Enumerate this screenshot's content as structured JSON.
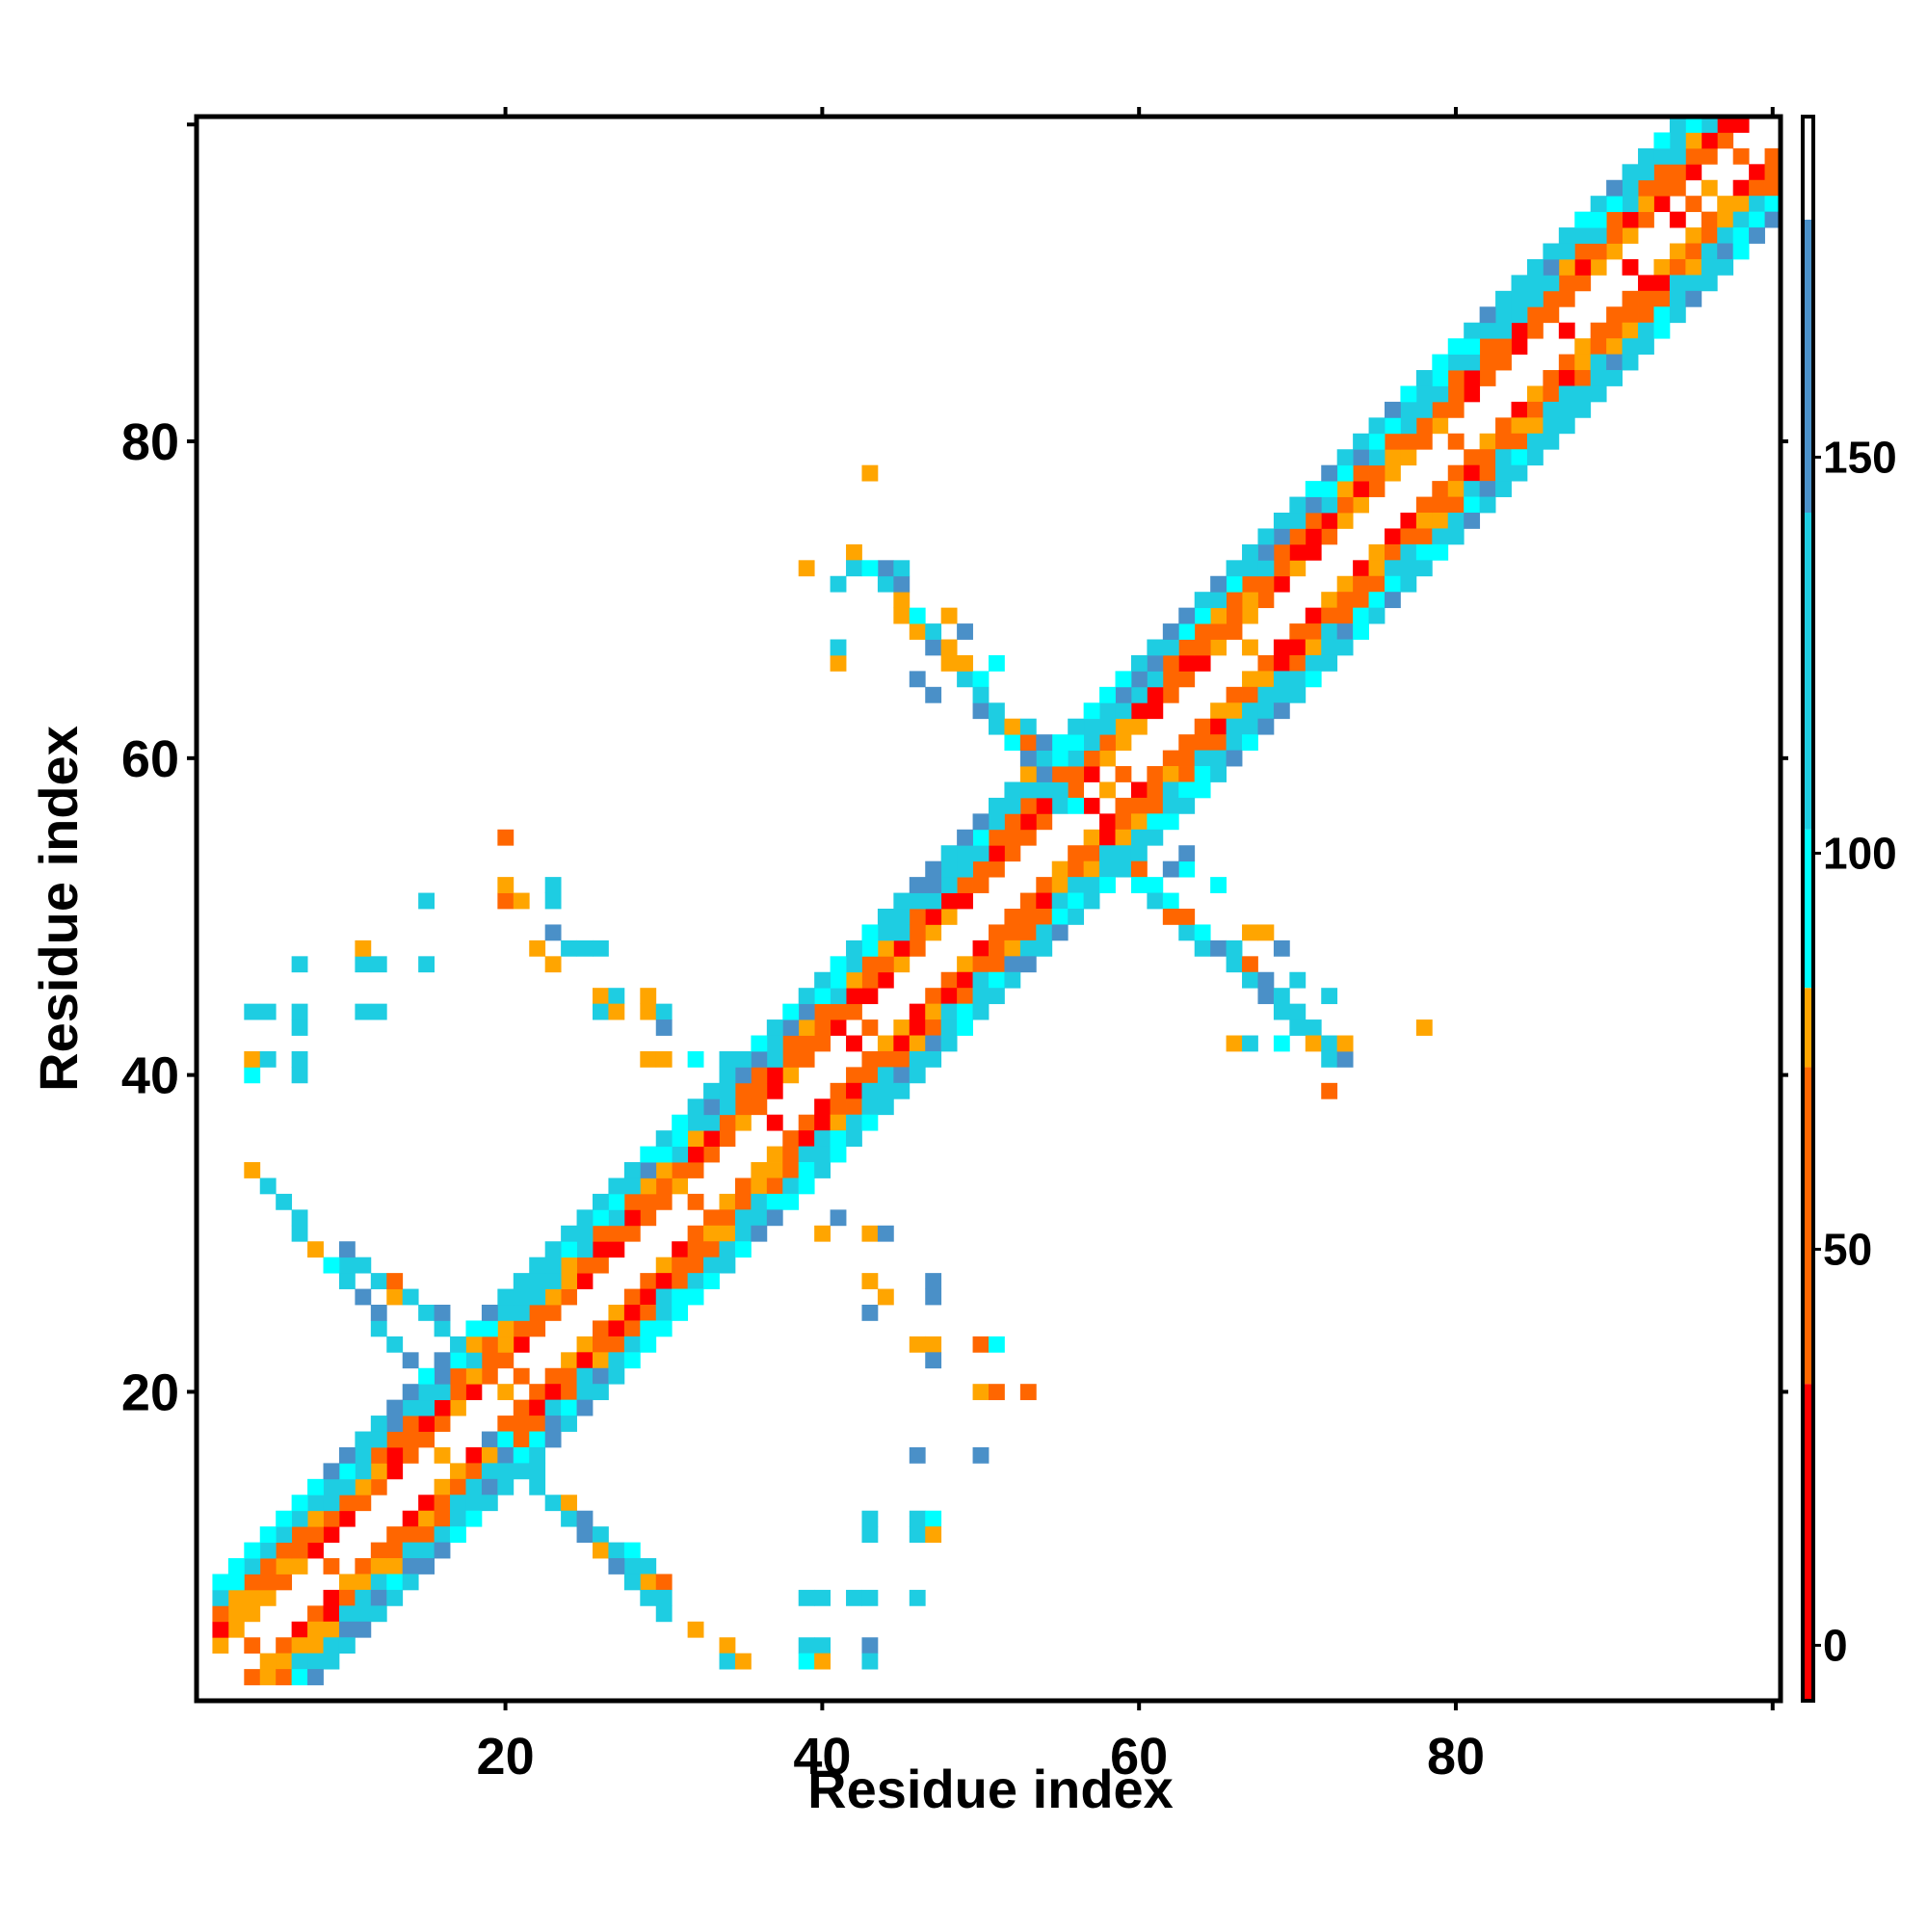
{
  "chart_data": {
    "type": "heatmap",
    "title": "",
    "xlabel": "Residue index",
    "ylabel": "Residue index",
    "xlim": [
      1,
      100
    ],
    "ylim": [
      1,
      100
    ],
    "x_ticks": [
      20,
      40,
      60,
      80
    ],
    "y_ticks": [
      20,
      40,
      60,
      80
    ],
    "grid": false,
    "colorbar": {
      "ticks": [
        0,
        50,
        100,
        150
      ],
      "range": [
        -7,
        193
      ],
      "bands": [
        {
          "from": -7,
          "to": 33,
          "color": "#ff0000"
        },
        {
          "from": 33,
          "to": 73,
          "color": "#ff6600"
        },
        {
          "from": 73,
          "to": 83,
          "color": "#ffa500"
        },
        {
          "from": 83,
          "to": 103,
          "color": "#00ffff"
        },
        {
          "from": 103,
          "to": 143,
          "color": "#1ecde2"
        },
        {
          "from": 143,
          "to": 180,
          "color": "#4a90c8"
        },
        {
          "from": 180,
          "to": 193,
          "color": "#ffffff"
        }
      ]
    },
    "palette": {
      "red": "#ff0000",
      "dark_orange": "#ff6600",
      "orange": "#ffa500",
      "cyan": "#00ffff",
      "sky": "#1ecde2",
      "steel": "#4a90c8"
    },
    "contact_map": {
      "bands": [
        {
          "x_start": 2,
          "x_end": 100,
          "offset": 0,
          "pattern": "diag"
        },
        {
          "x_start": 2,
          "x_end": 98,
          "offset": 2,
          "pattern": "near"
        },
        {
          "x_start": 2,
          "x_end": 97,
          "offset": 3,
          "pattern": "near"
        },
        {
          "x_start": 2,
          "x_end": 96,
          "offset": 4,
          "pattern": "mid"
        },
        {
          "x_start": 2,
          "x_end": 95,
          "offset": 5,
          "pattern": "far"
        },
        {
          "x_start": 2,
          "x_end": 95,
          "offset": 6,
          "pattern": "far"
        }
      ],
      "arms": [
        {
          "from": [
            17,
            23
          ],
          "to": [
            9,
            29
          ],
          "spread": 2
        },
        {
          "from": [
            15,
            21
          ],
          "to": [
            4,
            34
          ],
          "spread": 1
        },
        {
          "from": [
            19,
            17
          ],
          "to": [
            34,
            3
          ],
          "spread": 2
        },
        {
          "from": [
            21,
            15
          ],
          "to": [
            30,
            6
          ],
          "spread": 1
        },
        {
          "from": [
            55,
            57
          ],
          "to": [
            43,
            72
          ],
          "spread": 2
        },
        {
          "from": [
            53,
            60
          ],
          "to": [
            45,
            70
          ],
          "spread": 1
        },
        {
          "from": [
            58,
            54
          ],
          "to": [
            72,
            41
          ],
          "spread": 2
        },
        {
          "from": [
            60,
            52
          ],
          "to": [
            70,
            44
          ],
          "spread": 1
        }
      ],
      "clusters": [
        [
          4,
          40,
          "cyan"
        ],
        [
          4,
          41,
          "orange"
        ],
        [
          5,
          41,
          "sky"
        ],
        [
          7,
          40,
          "sky"
        ],
        [
          7,
          41,
          "sky"
        ],
        [
          4,
          44,
          "sky"
        ],
        [
          5,
          44,
          "sky"
        ],
        [
          7,
          44,
          "sky"
        ],
        [
          7,
          43,
          "sky"
        ],
        [
          11,
          44,
          "sky"
        ],
        [
          12,
          44,
          "sky"
        ],
        [
          7,
          47,
          "sky"
        ],
        [
          11,
          47,
          "sky"
        ],
        [
          11,
          48,
          "orange"
        ],
        [
          12,
          47,
          "sky"
        ],
        [
          15,
          47,
          "sky"
        ],
        [
          15,
          51,
          "sky"
        ],
        [
          20,
          55,
          "dark_orange"
        ],
        [
          20,
          51,
          "dark_orange"
        ],
        [
          20,
          52,
          "orange"
        ],
        [
          21,
          51,
          "orange"
        ],
        [
          23,
          51,
          "sky"
        ],
        [
          23,
          52,
          "sky"
        ],
        [
          22,
          48,
          "orange"
        ],
        [
          23,
          49,
          "steel"
        ],
        [
          23,
          47,
          "orange"
        ],
        [
          24,
          48,
          "sky"
        ],
        [
          25,
          48,
          "sky"
        ],
        [
          26,
          48,
          "sky"
        ],
        [
          26,
          45,
          "orange"
        ],
        [
          27,
          45,
          "sky"
        ],
        [
          26,
          44,
          "sky"
        ],
        [
          27,
          44,
          "orange"
        ],
        [
          29,
          44,
          "orange"
        ],
        [
          30,
          44,
          "sky"
        ],
        [
          29,
          45,
          "orange"
        ],
        [
          30,
          43,
          "steel"
        ],
        [
          29,
          41,
          "orange"
        ],
        [
          30,
          41,
          "orange"
        ],
        [
          32,
          41,
          "cyan"
        ],
        [
          34,
          41,
          "sky"
        ],
        [
          41,
          35,
          "cyan"
        ],
        [
          40,
          30,
          "orange"
        ],
        [
          41,
          31,
          "steel"
        ],
        [
          43,
          30,
          "orange"
        ],
        [
          44,
          30,
          "steel"
        ],
        [
          43,
          27,
          "orange"
        ],
        [
          44,
          26,
          "orange"
        ],
        [
          43,
          25,
          "steel"
        ],
        [
          47,
          27,
          "steel"
        ],
        [
          47,
          26,
          "steel"
        ],
        [
          46,
          23,
          "orange"
        ],
        [
          47,
          23,
          "orange"
        ],
        [
          47,
          22,
          "steel"
        ],
        [
          50,
          23,
          "dark_orange"
        ],
        [
          51,
          23,
          "cyan"
        ],
        [
          50,
          20,
          "orange"
        ],
        [
          51,
          20,
          "dark_orange"
        ],
        [
          53,
          20,
          "dark_orange"
        ],
        [
          46,
          16,
          "steel"
        ],
        [
          50,
          16,
          "steel"
        ],
        [
          43,
          12,
          "sky"
        ],
        [
          46,
          12,
          "sky"
        ],
        [
          47,
          12,
          "cyan"
        ],
        [
          46,
          11,
          "sky"
        ],
        [
          47,
          11,
          "orange"
        ],
        [
          43,
          11,
          "sky"
        ],
        [
          39,
          7,
          "sky"
        ],
        [
          40,
          7,
          "sky"
        ],
        [
          42,
          7,
          "sky"
        ],
        [
          43,
          7,
          "sky"
        ],
        [
          46,
          7,
          "sky"
        ],
        [
          39,
          4,
          "sky"
        ],
        [
          40,
          4,
          "sky"
        ],
        [
          39,
          3,
          "cyan"
        ],
        [
          40,
          3,
          "orange"
        ],
        [
          43,
          4,
          "steel"
        ],
        [
          43,
          3,
          "sky"
        ],
        [
          42,
          73,
          "orange"
        ],
        [
          43,
          78,
          "orange"
        ],
        [
          39,
          72,
          "orange"
        ],
        [
          41,
          71,
          "sky"
        ],
        [
          42,
          72,
          "sky"
        ],
        [
          43,
          72,
          "cyan"
        ],
        [
          45,
          72,
          "sky"
        ],
        [
          41,
          66,
          "orange"
        ],
        [
          41,
          67,
          "sky"
        ],
        [
          46,
          65,
          "steel"
        ],
        [
          47,
          64,
          "steel"
        ],
        [
          48,
          69,
          "orange"
        ],
        [
          49,
          68,
          "steel"
        ],
        [
          51,
          66,
          "cyan"
        ],
        [
          52,
          62,
          "orange"
        ],
        [
          53,
          62,
          "sky"
        ],
        [
          54,
          61,
          "steel"
        ],
        [
          78,
          43,
          "orange"
        ],
        [
          70,
          44,
          "sky"
        ],
        [
          72,
          45,
          "sky"
        ],
        [
          71,
          43,
          "sky"
        ],
        [
          72,
          42,
          "sky"
        ],
        [
          73,
          42,
          "orange"
        ],
        [
          72,
          39,
          "dark_orange"
        ],
        [
          69,
          42,
          "cyan"
        ],
        [
          66,
          42,
          "orange"
        ],
        [
          67,
          42,
          "sky"
        ],
        [
          65,
          52,
          "cyan"
        ],
        [
          63,
          53,
          "cyan"
        ],
        [
          62,
          53,
          "steel"
        ],
        [
          63,
          54,
          "steel"
        ],
        [
          68,
          49,
          "orange"
        ],
        [
          69,
          48,
          "steel"
        ],
        [
          70,
          46,
          "sky"
        ],
        [
          66,
          48,
          "sky"
        ],
        [
          67,
          49,
          "orange"
        ]
      ]
    }
  }
}
